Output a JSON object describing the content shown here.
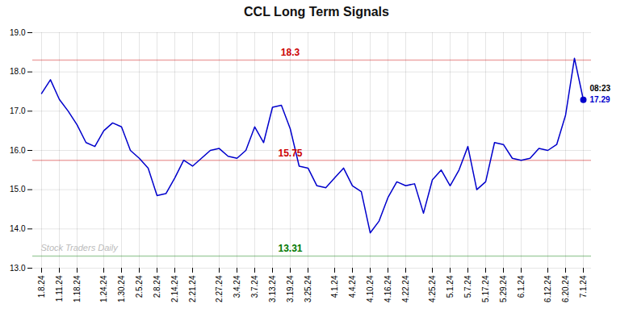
{
  "chart_data": {
    "type": "line",
    "title": "CCL Long Term Signals",
    "categories": [
      "1.8.24",
      null,
      "1.11.24",
      null,
      "1.18.24",
      null,
      null,
      "1.24.24",
      null,
      "1.30.24",
      null,
      "2.5.24",
      null,
      "2.8.24",
      null,
      "2.14.24",
      null,
      "2.21.24",
      null,
      null,
      "2.27.24",
      null,
      "3.4.24",
      null,
      "3.7.24",
      null,
      "3.13.24",
      null,
      "3.19.24",
      null,
      "3.25.24",
      null,
      null,
      "4.1.24",
      null,
      "4.4.24",
      null,
      "4.10.24",
      null,
      "4.16.24",
      null,
      "4.22.24",
      null,
      null,
      "4.25.24",
      null,
      "5.1.24",
      null,
      "5.7.24",
      null,
      "5.17.24",
      null,
      "5.29.24",
      null,
      "6.1.24",
      null,
      null,
      "6.12.24",
      null,
      "6.20.24",
      null,
      "7.1.24"
    ],
    "values": [
      17.45,
      17.8,
      17.3,
      17.0,
      16.65,
      16.2,
      16.1,
      16.5,
      16.7,
      16.6,
      16.0,
      15.8,
      15.55,
      14.85,
      14.9,
      15.3,
      15.75,
      15.6,
      15.8,
      16.0,
      16.05,
      15.85,
      15.8,
      16.0,
      16.6,
      16.2,
      17.1,
      17.15,
      16.55,
      15.6,
      15.55,
      15.1,
      15.05,
      15.3,
      15.55,
      15.1,
      14.95,
      13.9,
      14.2,
      14.8,
      15.2,
      15.1,
      15.15,
      14.4,
      15.25,
      15.5,
      15.1,
      15.5,
      16.1,
      15.0,
      15.2,
      16.2,
      16.15,
      15.8,
      15.75,
      15.8,
      16.05,
      16.0,
      16.15,
      16.9,
      18.35,
      17.29
    ],
    "color": "#0000cc",
    "ylim": [
      13,
      19
    ],
    "yticks": [
      13,
      14,
      15,
      16,
      17,
      18,
      19
    ],
    "grid": true,
    "reference_lines": [
      {
        "value": 18.3,
        "color": "#cc0000"
      },
      {
        "value": 15.75,
        "color": "#cc0000"
      },
      {
        "value": 13.31,
        "color": "#007700"
      }
    ],
    "annotations": [
      {
        "text": "08:23",
        "color": "#000000"
      },
      {
        "text": "17.29",
        "color": "#0000cc"
      }
    ],
    "watermark": "Stock Traders Daily"
  }
}
